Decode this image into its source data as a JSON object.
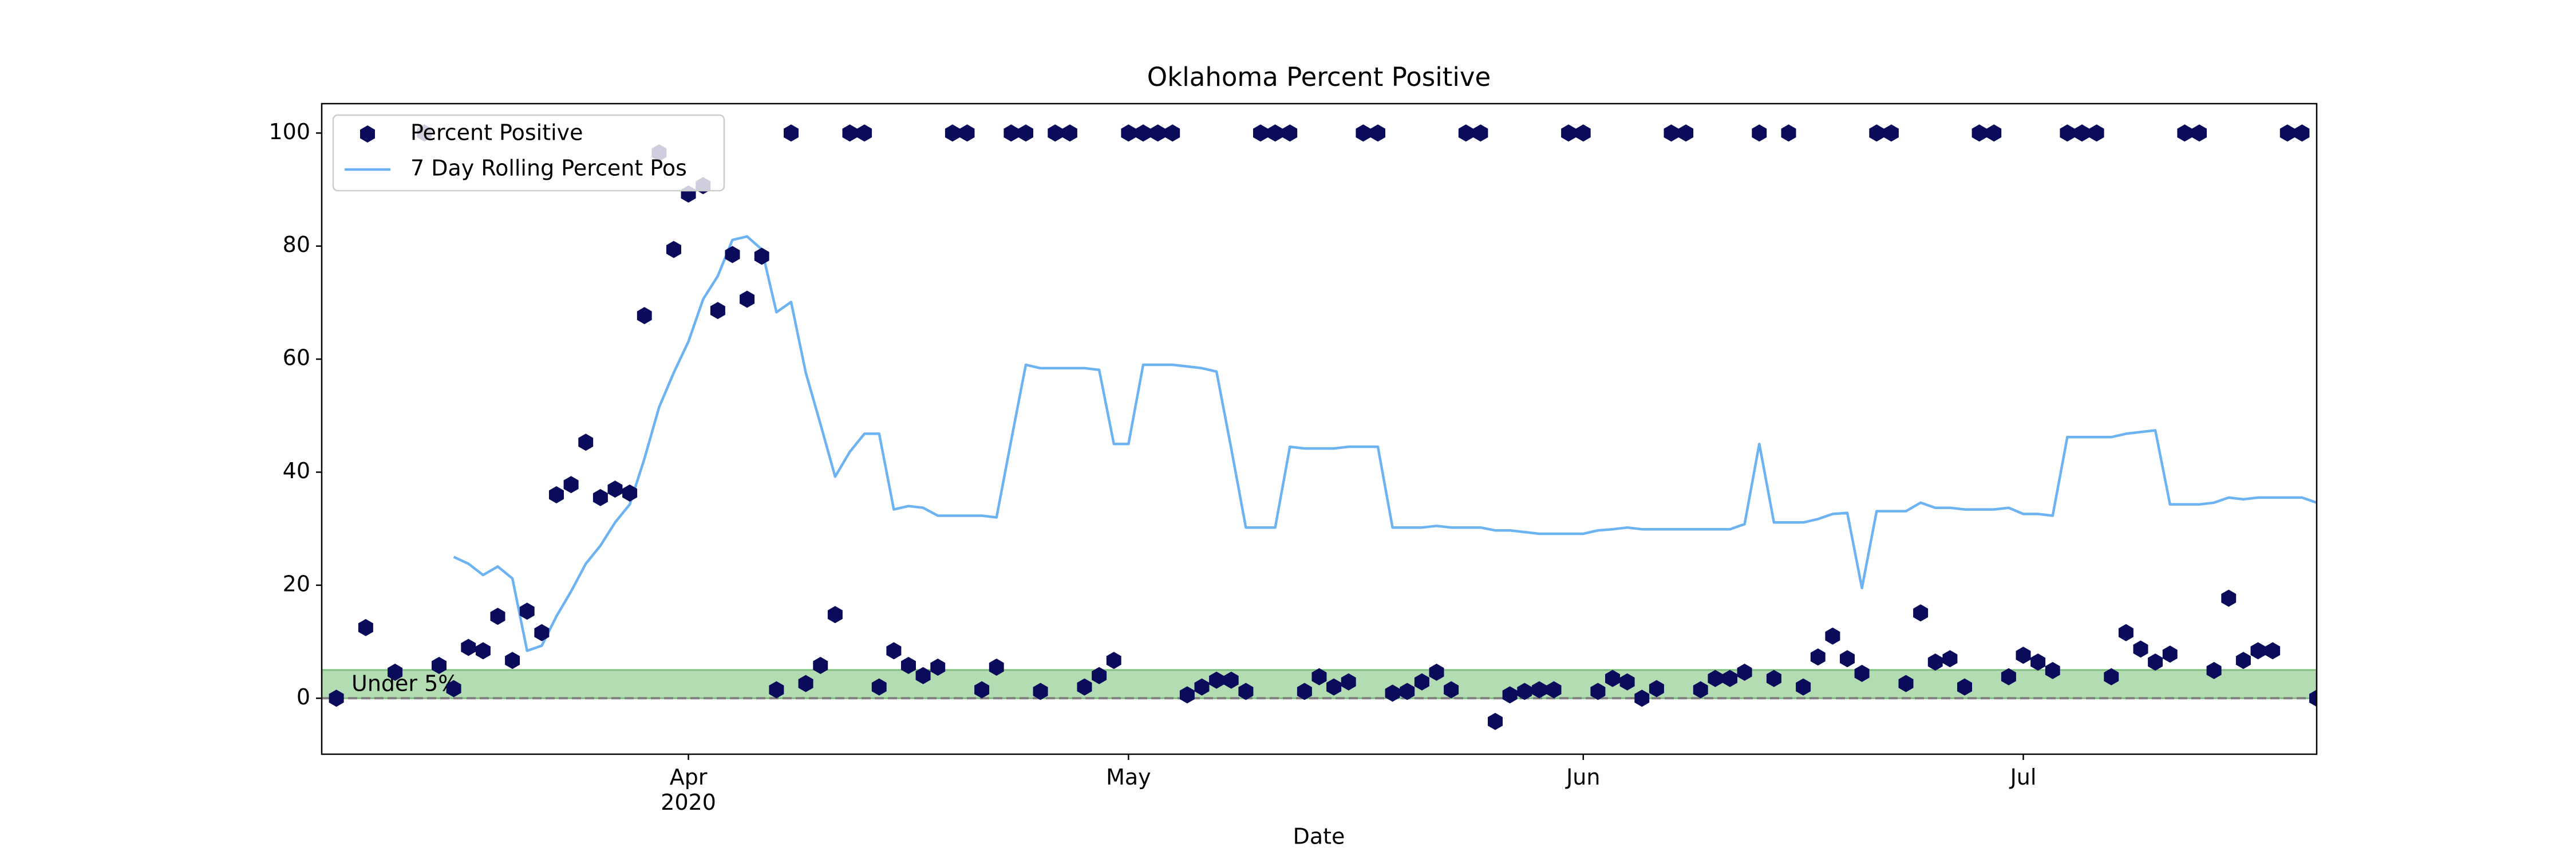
{
  "chart_data": {
    "type": "scatter",
    "title": "Oklahoma Percent Positive",
    "x_label": "Date",
    "x": [
      68,
      69,
      70,
      71,
      72,
      73,
      74,
      75,
      76,
      77,
      78,
      79,
      80,
      81,
      82,
      83,
      84,
      85,
      86,
      87,
      88,
      89,
      90,
      91,
      92,
      93,
      94,
      95,
      96,
      97,
      98,
      99,
      100,
      101,
      102,
      103,
      104,
      105,
      106,
      107,
      108,
      109,
      110,
      111,
      112,
      113,
      114,
      115,
      116,
      117,
      118,
      119,
      120,
      121,
      122,
      123,
      124,
      125,
      126,
      127,
      128,
      129,
      130,
      131,
      132,
      133,
      134,
      135,
      136,
      137,
      138,
      139,
      140,
      141,
      142,
      143,
      144,
      145,
      146,
      147,
      148,
      149,
      150,
      151,
      152,
      153,
      154,
      155,
      156,
      157,
      158,
      159,
      160,
      161,
      162,
      163,
      164,
      165,
      166,
      167,
      168,
      169,
      170,
      171,
      172,
      173,
      174,
      175,
      176,
      177,
      178,
      179,
      180,
      181,
      182,
      183,
      184,
      185,
      186,
      187,
      188,
      189,
      190,
      191,
      192,
      193,
      194,
      195,
      196,
      197,
      198,
      199,
      200,
      201,
      202,
      203
    ],
    "series": [
      {
        "name": "Percent Positive",
        "type": "scatter",
        "color": "#0b0b5c",
        "values": [
          0,
          null,
          12.5,
          null,
          4.6,
          null,
          100,
          5.8,
          1.7,
          9,
          8.4,
          14.5,
          6.7,
          15.4,
          11.6,
          36,
          37.8,
          45.3,
          35.5,
          37,
          36.3,
          67.7,
          96.5,
          79.4,
          89.2,
          90.7,
          68.6,
          78.5,
          70.6,
          78.2,
          1.5,
          100,
          2.6,
          5.8,
          14.8,
          100,
          100,
          2,
          8.4,
          5.8,
          4,
          5.5,
          100,
          100,
          1.5,
          5.5,
          100,
          100,
          1.2,
          100,
          100,
          2,
          4,
          6.7,
          100,
          100,
          100,
          100,
          0.6,
          2,
          3.2,
          3.2,
          1.2,
          100,
          100,
          100,
          1.2,
          3.8,
          2,
          2.9,
          100,
          100,
          0.9,
          1.2,
          2.9,
          4.6,
          1.5,
          100,
          100,
          -4.1,
          0.6,
          1.2,
          1.5,
          1.5,
          100,
          100,
          1.2,
          3.5,
          2.9,
          0,
          1.7,
          100,
          100,
          1.5,
          3.5,
          3.5,
          4.6,
          100,
          3.5,
          100,
          2,
          7.3,
          11,
          7,
          4.4,
          100,
          100,
          2.6,
          15.1,
          6.4,
          7,
          2,
          100,
          100,
          3.8,
          7.6,
          6.4,
          4.9,
          100,
          100,
          100,
          3.8,
          11.6,
          8.7,
          6.4,
          7.8,
          100,
          100,
          4.9,
          17.7,
          6.7,
          8.4,
          8.4,
          100,
          100,
          0
        ]
      },
      {
        "name": "7 Day Rolling Percent Pos",
        "type": "line",
        "color": "#6db3f2",
        "values": [
          null,
          null,
          null,
          null,
          null,
          null,
          null,
          null,
          25,
          23.8,
          21.8,
          23.3,
          21.2,
          8.4,
          9.3,
          14.5,
          18.9,
          23.8,
          27,
          31.1,
          34.3,
          42.4,
          51.5,
          57.6,
          63.1,
          70.6,
          74.7,
          81.1,
          81.7,
          79.4,
          68.3,
          70.1,
          57.6,
          48.5,
          39.2,
          43.6,
          46.8,
          46.8,
          33.4,
          34,
          33.7,
          32.3,
          32.3,
          32.3,
          32.3,
          32,
          45.6,
          59,
          58.4,
          58.4,
          58.4,
          58.4,
          58.1,
          45,
          45,
          59,
          59,
          59,
          58.7,
          58.4,
          57.8,
          44.2,
          30.2,
          30.2,
          30.2,
          44.5,
          44.2,
          44.2,
          44.2,
          44.5,
          44.5,
          44.5,
          30.2,
          30.2,
          30.2,
          30.5,
          30.2,
          30.2,
          30.2,
          29.7,
          29.7,
          29.4,
          29.1,
          29.1,
          29.1,
          29.1,
          29.7,
          29.9,
          30.2,
          29.9,
          29.9,
          29.9,
          29.9,
          29.9,
          29.9,
          29.9,
          30.8,
          45,
          31.1,
          31.1,
          31.1,
          31.7,
          32.6,
          32.8,
          19.5,
          33.1,
          33.1,
          33.1,
          34.6,
          33.7,
          33.7,
          33.4,
          33.4,
          33.4,
          33.7,
          32.6,
          32.6,
          32.3,
          46.2,
          46.2,
          46.2,
          46.2,
          46.8,
          47.1,
          47.4,
          34.3,
          34.3,
          34.3,
          34.6,
          35.5,
          35.2,
          35.5,
          35.5,
          35.5,
          35.5,
          34.6
        ]
      }
    ],
    "xlim": [
      67,
      203
    ],
    "xticks": [
      {
        "value": 92,
        "label": "Apr\n2020"
      },
      {
        "value": 122,
        "label": "May"
      },
      {
        "value": 153,
        "label": "Jun"
      },
      {
        "value": 183,
        "label": "Jul"
      }
    ],
    "ylim": [
      -9.9,
      105.2
    ],
    "yticks": [
      0,
      20,
      40,
      60,
      80,
      100
    ],
    "legend": "upper left",
    "reference_band": {
      "range": [
        0,
        5
      ],
      "label": "Under 5%",
      "color": "#b3dcb3",
      "edge_color": "#7fbf7f"
    },
    "reference_line": {
      "value": 0,
      "style": "dashed",
      "color": "#808080"
    }
  }
}
